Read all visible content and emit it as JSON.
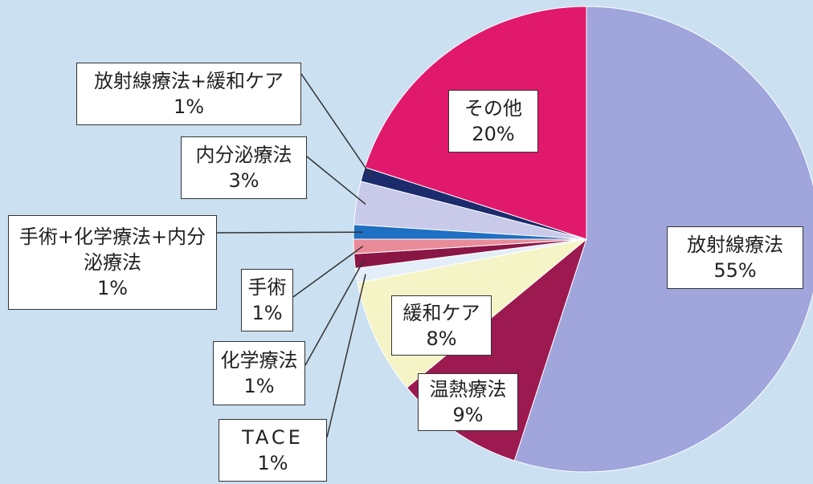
{
  "chart_data": {
    "type": "pie",
    "categories": [
      "放射線療法",
      "温熱療法",
      "緩和ケア",
      "TACE",
      "化学療法",
      "手術",
      "手術+化学療法+内分泌療法",
      "内分泌療法",
      "放射線療法+緩和ケア",
      "その他"
    ],
    "values": [
      55,
      9,
      8,
      1,
      1,
      1,
      1,
      3,
      1,
      20
    ],
    "value_labels": [
      "55%",
      "9%",
      "8%",
      "1%",
      "1%",
      "1%",
      "1%",
      "3%",
      "1%",
      "20%"
    ],
    "colors": [
      "#a0a6dc",
      "#9c1a50",
      "#f4f4c6",
      "#e4eef8",
      "#8a1646",
      "#e98b98",
      "#1f6fc2",
      "#c9c9ea",
      "#1b2b6c",
      "#e0196d"
    ]
  }
}
